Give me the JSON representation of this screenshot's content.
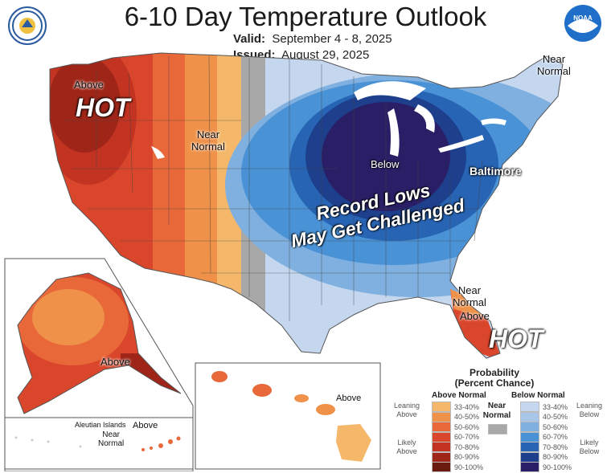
{
  "header": {
    "title": "6-10 Day Temperature Outlook",
    "valid_label": "Valid:",
    "valid_value": "September 4 - 8, 2025",
    "issued_label": "Issued:",
    "issued_value": "August 29, 2025"
  },
  "logos": {
    "left": "department-of-commerce-seal",
    "right": "noaa-logo",
    "right_text": "NOAA"
  },
  "map_labels": {
    "west_above": "Above",
    "west_hot": "HOT",
    "rockies_near_normal_line1": "Near",
    "rockies_near_normal_line2": "Normal",
    "northeast_near_normal_line1": "Near",
    "northeast_near_normal_line2": "Normal",
    "midwest_below": "Below",
    "baltimore": "Baltimore",
    "record_line1": "Record Lows",
    "record_line2": "May Get Challenged",
    "florida_near_normal_line1": "Near",
    "florida_near_normal_line2": "Normal",
    "florida_above": "Above",
    "florida_hot": "HOT",
    "alaska_above": "Above",
    "aleutian_islands": "Aleutian Islands",
    "aleutian_near_normal_line1": "Near",
    "aleutian_near_normal_line2": "Normal",
    "aleutian_above": "Above",
    "hawaii_above": "Above"
  },
  "legend": {
    "title_line1": "Probability",
    "title_line2": "(Percent Chance)",
    "above_header": "Above Normal",
    "below_header": "Below Normal",
    "near_line1": "Near",
    "near_line2": "Normal",
    "leaning_above_line1": "Leaning",
    "leaning_above_line2": "Above",
    "likely_above_line1": "Likely",
    "likely_above_line2": "Above",
    "leaning_below_line1": "Leaning",
    "leaning_below_line2": "Below",
    "likely_below_line1": "Likely",
    "likely_below_line2": "Below",
    "above_ranges": [
      "33-40%",
      "40-50%",
      "50-60%",
      "60-70%",
      "70-80%",
      "80-90%",
      "90-100%"
    ],
    "below_ranges": [
      "33-40%",
      "40-50%",
      "50-60%",
      "60-70%",
      "70-80%",
      "80-90%",
      "90-100%"
    ],
    "above_colors": [
      "#f5b86a",
      "#ef9148",
      "#e8683a",
      "#d9462b",
      "#c23321",
      "#9e2517",
      "#6b1a10"
    ],
    "below_colors": [
      "#c5d7ee",
      "#a9c6e8",
      "#7fb0e0",
      "#4a92d6",
      "#2864b4",
      "#1d3f8c",
      "#2a1f66"
    ],
    "near_color": "#a8a8a8"
  }
}
